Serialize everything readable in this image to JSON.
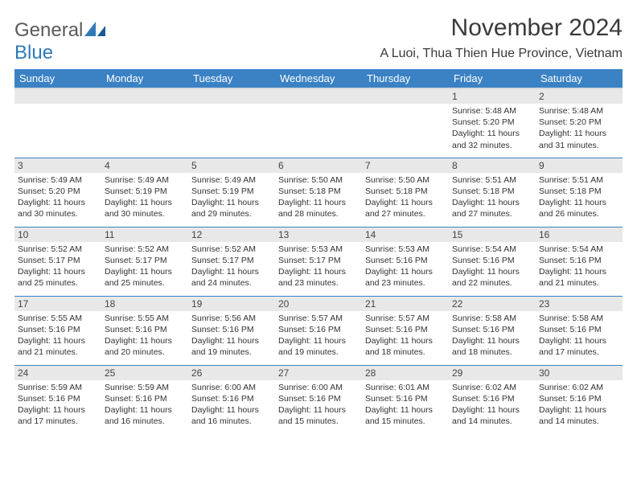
{
  "logo": {
    "text1": "General",
    "text2": "Blue"
  },
  "title": "November 2024",
  "location": "A Luoi, Thua Thien Hue Province, Vietnam",
  "colors": {
    "header_bg": "#3b82c4",
    "header_fg": "#ffffff",
    "daynum_bg": "#e8e8e8",
    "border": "#3b82c4",
    "logo_blue": "#2f79b9",
    "logo_gray": "#5a5a5a"
  },
  "weekdays": [
    "Sunday",
    "Monday",
    "Tuesday",
    "Wednesday",
    "Thursday",
    "Friday",
    "Saturday"
  ],
  "weeks": [
    [
      null,
      null,
      null,
      null,
      null,
      {
        "n": "1",
        "sr": "5:48 AM",
        "ss": "5:20 PM",
        "dl": "11 hours and 32 minutes."
      },
      {
        "n": "2",
        "sr": "5:48 AM",
        "ss": "5:20 PM",
        "dl": "11 hours and 31 minutes."
      }
    ],
    [
      {
        "n": "3",
        "sr": "5:49 AM",
        "ss": "5:20 PM",
        "dl": "11 hours and 30 minutes."
      },
      {
        "n": "4",
        "sr": "5:49 AM",
        "ss": "5:19 PM",
        "dl": "11 hours and 30 minutes."
      },
      {
        "n": "5",
        "sr": "5:49 AM",
        "ss": "5:19 PM",
        "dl": "11 hours and 29 minutes."
      },
      {
        "n": "6",
        "sr": "5:50 AM",
        "ss": "5:18 PM",
        "dl": "11 hours and 28 minutes."
      },
      {
        "n": "7",
        "sr": "5:50 AM",
        "ss": "5:18 PM",
        "dl": "11 hours and 27 minutes."
      },
      {
        "n": "8",
        "sr": "5:51 AM",
        "ss": "5:18 PM",
        "dl": "11 hours and 27 minutes."
      },
      {
        "n": "9",
        "sr": "5:51 AM",
        "ss": "5:18 PM",
        "dl": "11 hours and 26 minutes."
      }
    ],
    [
      {
        "n": "10",
        "sr": "5:52 AM",
        "ss": "5:17 PM",
        "dl": "11 hours and 25 minutes."
      },
      {
        "n": "11",
        "sr": "5:52 AM",
        "ss": "5:17 PM",
        "dl": "11 hours and 25 minutes."
      },
      {
        "n": "12",
        "sr": "5:52 AM",
        "ss": "5:17 PM",
        "dl": "11 hours and 24 minutes."
      },
      {
        "n": "13",
        "sr": "5:53 AM",
        "ss": "5:17 PM",
        "dl": "11 hours and 23 minutes."
      },
      {
        "n": "14",
        "sr": "5:53 AM",
        "ss": "5:16 PM",
        "dl": "11 hours and 23 minutes."
      },
      {
        "n": "15",
        "sr": "5:54 AM",
        "ss": "5:16 PM",
        "dl": "11 hours and 22 minutes."
      },
      {
        "n": "16",
        "sr": "5:54 AM",
        "ss": "5:16 PM",
        "dl": "11 hours and 21 minutes."
      }
    ],
    [
      {
        "n": "17",
        "sr": "5:55 AM",
        "ss": "5:16 PM",
        "dl": "11 hours and 21 minutes."
      },
      {
        "n": "18",
        "sr": "5:55 AM",
        "ss": "5:16 PM",
        "dl": "11 hours and 20 minutes."
      },
      {
        "n": "19",
        "sr": "5:56 AM",
        "ss": "5:16 PM",
        "dl": "11 hours and 19 minutes."
      },
      {
        "n": "20",
        "sr": "5:57 AM",
        "ss": "5:16 PM",
        "dl": "11 hours and 19 minutes."
      },
      {
        "n": "21",
        "sr": "5:57 AM",
        "ss": "5:16 PM",
        "dl": "11 hours and 18 minutes."
      },
      {
        "n": "22",
        "sr": "5:58 AM",
        "ss": "5:16 PM",
        "dl": "11 hours and 18 minutes."
      },
      {
        "n": "23",
        "sr": "5:58 AM",
        "ss": "5:16 PM",
        "dl": "11 hours and 17 minutes."
      }
    ],
    [
      {
        "n": "24",
        "sr": "5:59 AM",
        "ss": "5:16 PM",
        "dl": "11 hours and 17 minutes."
      },
      {
        "n": "25",
        "sr": "5:59 AM",
        "ss": "5:16 PM",
        "dl": "11 hours and 16 minutes."
      },
      {
        "n": "26",
        "sr": "6:00 AM",
        "ss": "5:16 PM",
        "dl": "11 hours and 16 minutes."
      },
      {
        "n": "27",
        "sr": "6:00 AM",
        "ss": "5:16 PM",
        "dl": "11 hours and 15 minutes."
      },
      {
        "n": "28",
        "sr": "6:01 AM",
        "ss": "5:16 PM",
        "dl": "11 hours and 15 minutes."
      },
      {
        "n": "29",
        "sr": "6:02 AM",
        "ss": "5:16 PM",
        "dl": "11 hours and 14 minutes."
      },
      {
        "n": "30",
        "sr": "6:02 AM",
        "ss": "5:16 PM",
        "dl": "11 hours and 14 minutes."
      }
    ]
  ]
}
